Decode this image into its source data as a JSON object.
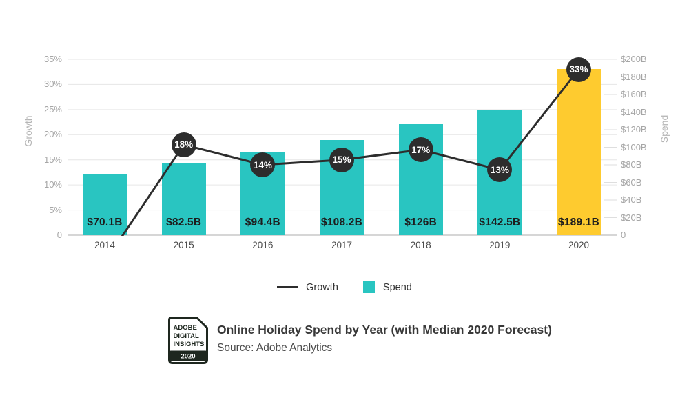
{
  "chart_data": {
    "type": "combo",
    "title": "Online Holiday Spend by Year (with Median 2020 Forecast)",
    "source": "Source: Adobe Analytics",
    "categories": [
      "2014",
      "2015",
      "2016",
      "2017",
      "2018",
      "2019",
      "2020"
    ],
    "series": [
      {
        "name": "Spend",
        "type": "bar",
        "axis": "right",
        "unit": "$B",
        "values": [
          70.1,
          82.5,
          94.4,
          108.2,
          126,
          142.5,
          189.1
        ],
        "labels": [
          "$70.1B",
          "$82.5B",
          "$94.4B",
          "$108.2B",
          "$126B",
          "$142.5B",
          "$189.1B"
        ],
        "highlight_index": 6
      },
      {
        "name": "Growth",
        "type": "line",
        "axis": "left",
        "unit": "%",
        "values": [
          null,
          18,
          14,
          15,
          17,
          13,
          33
        ],
        "labels": [
          "",
          "18%",
          "14%",
          "15%",
          "17%",
          "13%",
          "33%"
        ]
      }
    ],
    "left_axis": {
      "title": "Growth",
      "max": 35,
      "tick_step": 5,
      "ticks": [
        "0",
        "5%",
        "10%",
        "15%",
        "20%",
        "25%",
        "30%",
        "35%"
      ]
    },
    "right_axis": {
      "title": "Spend",
      "max": 200,
      "tick_step": 20,
      "ticks": [
        "0",
        "$20B",
        "$40B",
        "$60B",
        "$80B",
        "$100B",
        "$120B",
        "$140B",
        "$160B",
        "$180B",
        "$200B"
      ]
    },
    "legend": [
      {
        "label": "Growth",
        "swatch": "line"
      },
      {
        "label": "Spend",
        "swatch": "square"
      }
    ],
    "colors": {
      "spend_bar": "#29c5c1",
      "forecast_bar": "#fecb2f",
      "growth_line": "#2d2d2d",
      "marker_fill": "#2d2d2d",
      "marker_text": "#ffffff",
      "gridline": "#e6e6e6",
      "axis_line": "#c9c9c9"
    },
    "grid": "horizontal",
    "legend_position": "bottom-center"
  },
  "footer": {
    "logo": {
      "line1": "ADOBE",
      "line2": "DIGITAL",
      "line3": "INSIGHTS",
      "year": "2020"
    },
    "title": "Online Holiday Spend by Year (with Median 2020 Forecast)",
    "source": "Source: Adobe Analytics"
  }
}
